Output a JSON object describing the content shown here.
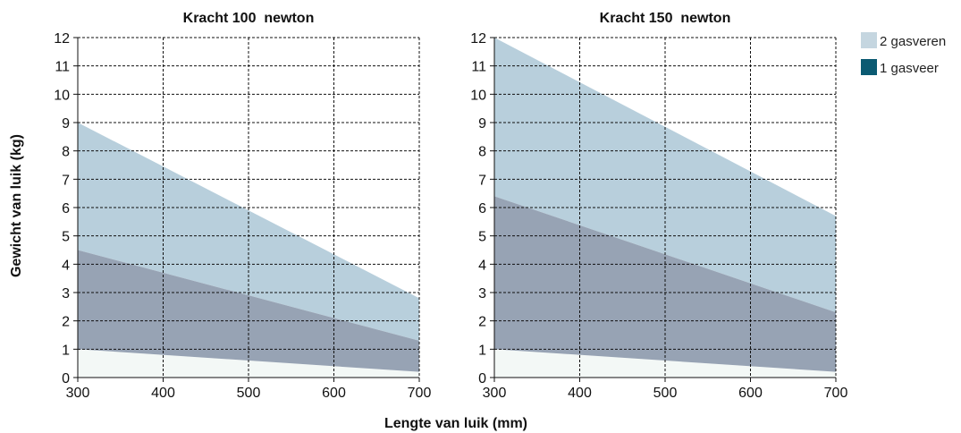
{
  "xlabel": "Lengte van luik (mm)",
  "ylabel": "Gewicht van luik (kg)",
  "legend": [
    {
      "label": "2 gasveren",
      "color": "#c5d6e0"
    },
    {
      "label": "1 gasveer",
      "color": "#0b5a72"
    }
  ],
  "colors": {
    "two_springs_area": "#b8cfdc",
    "one_spring_area": "#97a3b4",
    "base_area": "#f3f8f6"
  },
  "chart_data": [
    {
      "type": "area",
      "title": "Kracht 100  newton",
      "x": [
        300,
        400,
        500,
        600,
        700
      ],
      "xlim": [
        300,
        700
      ],
      "ylim": [
        0,
        12
      ],
      "xticks": [
        300,
        400,
        500,
        600,
        700
      ],
      "yticks": [
        0,
        1,
        2,
        3,
        4,
        5,
        6,
        7,
        8,
        9,
        10,
        11,
        12
      ],
      "grid": true,
      "series": [
        {
          "name": "2 gasveren",
          "upper": [
            [
              300,
              9.0
            ],
            [
              700,
              2.8
            ]
          ],
          "lower": [
            [
              300,
              4.5
            ],
            [
              700,
              1.3
            ]
          ]
        },
        {
          "name": "1 gasveer",
          "upper": [
            [
              300,
              4.5
            ],
            [
              700,
              1.3
            ]
          ],
          "lower": [
            [
              300,
              1.0
            ],
            [
              700,
              0.2
            ]
          ]
        }
      ]
    },
    {
      "type": "area",
      "title": "Kracht 150  newton",
      "x": [
        300,
        400,
        500,
        600,
        700
      ],
      "xlim": [
        300,
        700
      ],
      "ylim": [
        0,
        12
      ],
      "xticks": [
        300,
        400,
        500,
        600,
        700
      ],
      "yticks": [
        0,
        1,
        2,
        3,
        4,
        5,
        6,
        7,
        8,
        9,
        10,
        11,
        12
      ],
      "grid": true,
      "series": [
        {
          "name": "2 gasveren",
          "upper": [
            [
              300,
              12.0
            ],
            [
              700,
              5.7
            ]
          ],
          "lower": [
            [
              300,
              6.4
            ],
            [
              700,
              2.3
            ]
          ]
        },
        {
          "name": "1 gasveer",
          "upper": [
            [
              300,
              6.4
            ],
            [
              700,
              2.3
            ]
          ],
          "lower": [
            [
              300,
              1.0
            ],
            [
              700,
              0.2
            ]
          ]
        }
      ]
    }
  ]
}
